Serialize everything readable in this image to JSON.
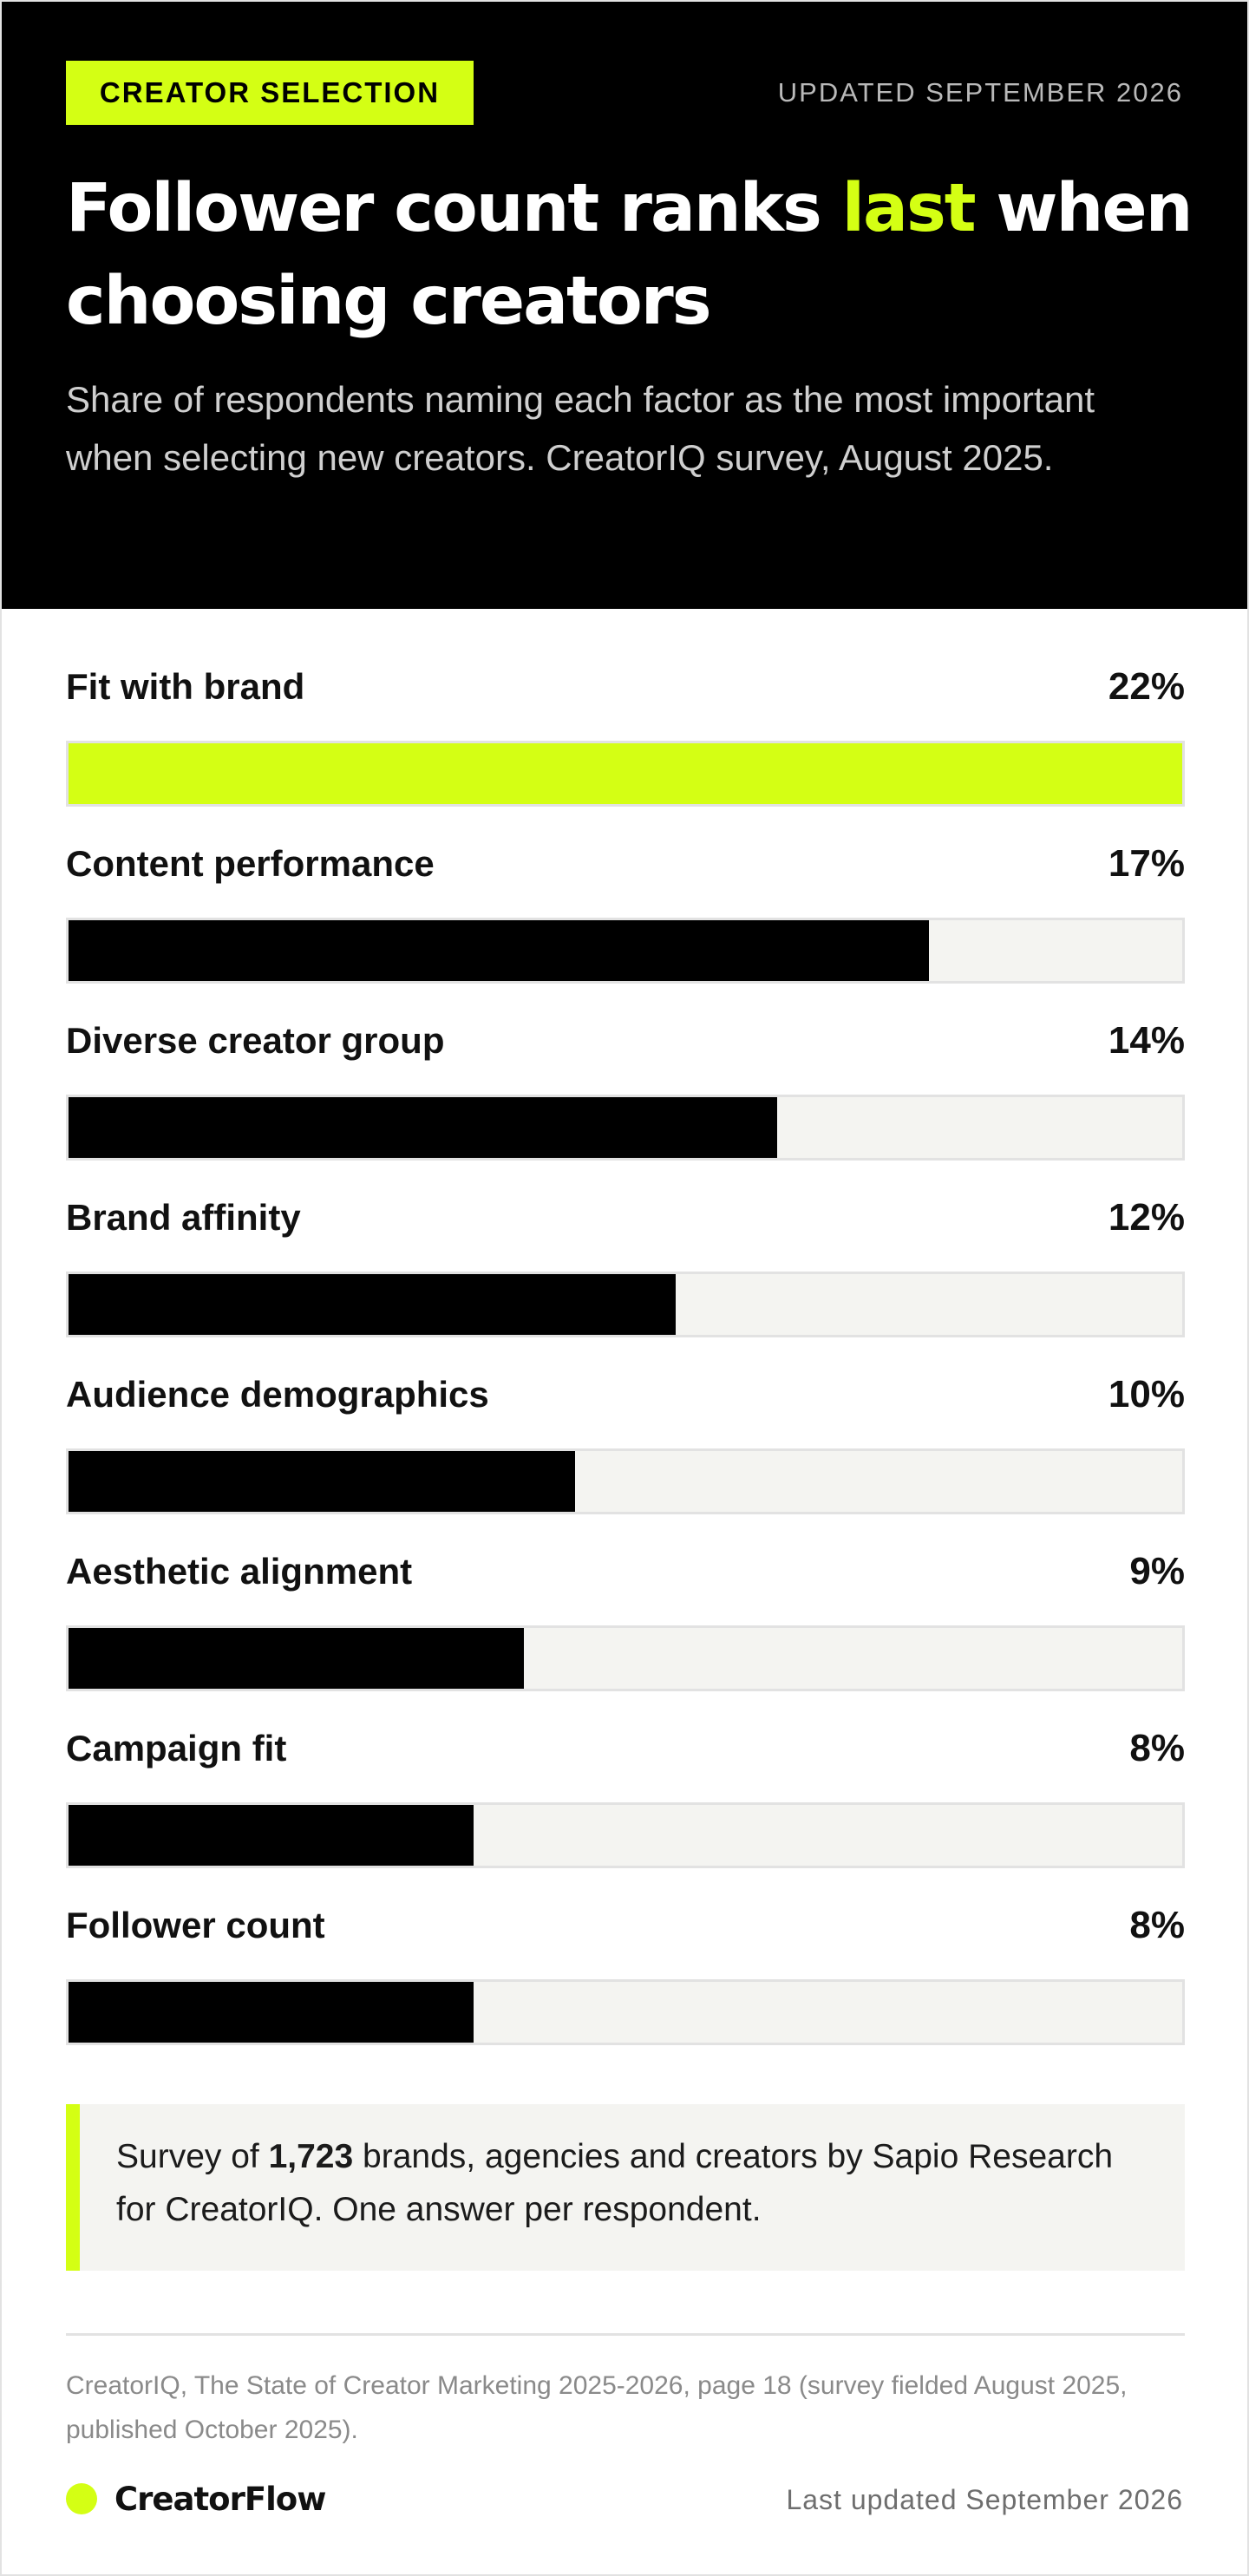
{
  "header": {
    "eyebrow": "CREATOR SELECTION",
    "updated": "UPDATED SEPTEMBER 2026",
    "title_before": "Follower count ranks ",
    "title_accent": "last",
    "title_after": " when choosing creators",
    "subtitle": "Share of respondents naming each factor as the most important when selecting new creators. CreatorIQ survey, August 2025."
  },
  "chart_data": {
    "type": "bar",
    "orientation": "horizontal",
    "value_suffix": "%",
    "categories": [
      "Fit with brand",
      "Content performance",
      "Diverse creator group",
      "Brand affinity",
      "Audience demographics",
      "Aesthetic alignment",
      "Campaign fit",
      "Follower count"
    ],
    "values": [
      22,
      17,
      14,
      12,
      10,
      9,
      8,
      8
    ],
    "labels": [
      "22%",
      "17%",
      "14%",
      "12%",
      "10%",
      "9%",
      "8%",
      "8%"
    ],
    "xlim": [
      0,
      22
    ],
    "highlight_index": 0,
    "colors": {
      "highlight": "#d4ff14",
      "bar": "#000000",
      "track": "#f4f4f1"
    }
  },
  "note": {
    "prefix": "Survey of ",
    "count": "1,723",
    "suffix": " brands, agencies and creators by Sapio Research for CreatorIQ. One answer per respondent."
  },
  "source": "CreatorIQ, The State of Creator Marketing 2025-2026, page 18 (survey fielded August 2025, published October 2025).",
  "footer": {
    "brand": "CreatorFlow",
    "updated": "Last updated September 2026"
  },
  "colors": {
    "accent": "#d4ff14",
    "hero_background": "#000000"
  }
}
